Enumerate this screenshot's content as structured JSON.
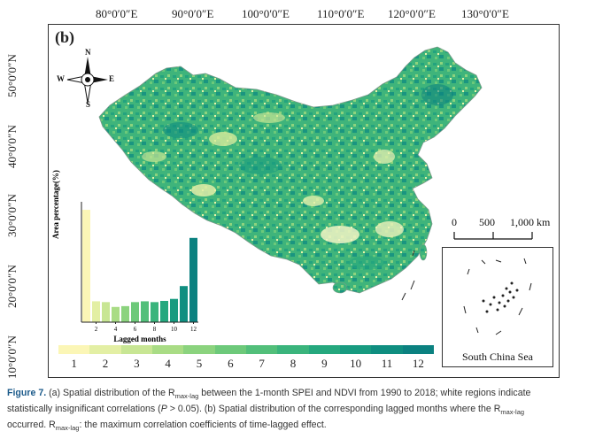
{
  "longitude_labels": [
    "80°0′0″E",
    "90°0′0″E",
    "100°0′0″E",
    "110°0′0″E",
    "120°0′0″E",
    "130°0′0″E"
  ],
  "latitude_labels": [
    "50°0′0″N",
    "40°0′0″N",
    "30°0′0″N",
    "20°0′0″N",
    "10°0′0″N"
  ],
  "panel_label": "(b)",
  "compass": {
    "n": "N",
    "s": "S",
    "e": "E",
    "w": "W"
  },
  "scale_bar": {
    "labels": [
      "0",
      "500",
      "1,000 km"
    ]
  },
  "inset_label": "South China Sea",
  "legend": {
    "values": [
      "1",
      "2",
      "3",
      "4",
      "5",
      "6",
      "7",
      "8",
      "9",
      "10",
      "11",
      "12"
    ],
    "colors": [
      "#fbf6b6",
      "#e3efa4",
      "#c8e694",
      "#a9dc85",
      "#8bd37e",
      "#6dc97a",
      "#52bf7a",
      "#3ab47c",
      "#25a87e",
      "#179b80",
      "#0f8e80",
      "#0b8180"
    ]
  },
  "chart_data": {
    "type": "bar",
    "ylabel": "Area percentage(%)",
    "xlabel": "Lagged months",
    "categories": [
      1,
      2,
      3,
      4,
      5,
      6,
      7,
      8,
      9,
      10,
      11,
      12
    ],
    "tick_labels": [
      "2",
      "4",
      "6",
      "8",
      "10",
      "12"
    ],
    "values": [
      28,
      5.2,
      5.0,
      3.8,
      4.0,
      5.0,
      5.2,
      5.0,
      5.3,
      5.8,
      9.0,
      21.0
    ],
    "ylim": [
      0,
      30
    ]
  },
  "caption": {
    "figure": "Figure 7.",
    "line1_a": " (a) Spatial distribution of the R",
    "sub1": "max-lag",
    "line1_b": " between the 1-month SPEI and NDVI from 1990 to 2018; white regions indicate",
    "line2_a": "statistically insignificant correlations (",
    "p_symbol": "P",
    "line2_b": " > 0.05). (b) Spatial distribution of the corresponding lagged months where the R",
    "sub2": "max-lag",
    "line3_a": "occurred. R",
    "sub3": "max-lag",
    "line3_b": ": the maximum correlation coefficients of time-lagged effect."
  }
}
